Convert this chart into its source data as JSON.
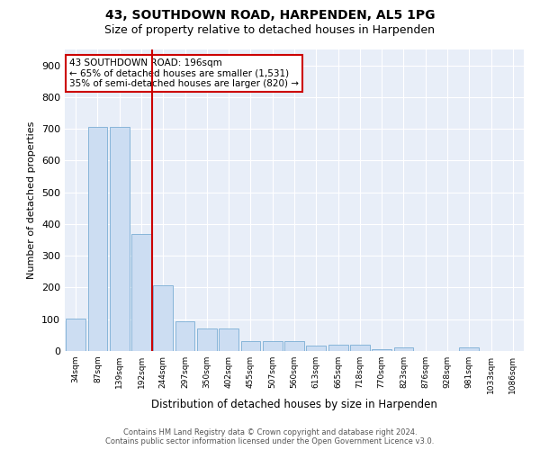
{
  "title": "43, SOUTHDOWN ROAD, HARPENDEN, AL5 1PG",
  "subtitle": "Size of property relative to detached houses in Harpenden",
  "xlabel": "Distribution of detached houses by size in Harpenden",
  "ylabel": "Number of detached properties",
  "bar_labels": [
    "34sqm",
    "87sqm",
    "139sqm",
    "192sqm",
    "244sqm",
    "297sqm",
    "350sqm",
    "402sqm",
    "455sqm",
    "507sqm",
    "560sqm",
    "613sqm",
    "665sqm",
    "718sqm",
    "770sqm",
    "823sqm",
    "876sqm",
    "928sqm",
    "981sqm",
    "1033sqm",
    "1086sqm"
  ],
  "bar_values": [
    102,
    705,
    705,
    370,
    207,
    95,
    70,
    70,
    30,
    32,
    32,
    16,
    20,
    20,
    5,
    10,
    0,
    0,
    10,
    0,
    0
  ],
  "bar_color": "#ccddf2",
  "bar_edgecolor": "#7aadd4",
  "vline_color": "#cc0000",
  "annotation_text": "43 SOUTHDOWN ROAD: 196sqm\n← 65% of detached houses are smaller (1,531)\n35% of semi-detached houses are larger (820) →",
  "annotation_box_color": "#ffffff",
  "annotation_box_edgecolor": "#cc0000",
  "ylim": [
    0,
    950
  ],
  "yticks": [
    0,
    100,
    200,
    300,
    400,
    500,
    600,
    700,
    800,
    900
  ],
  "footer_text": "Contains HM Land Registry data © Crown copyright and database right 2024.\nContains public sector information licensed under the Open Government Licence v3.0.",
  "bg_color": "#e8eef8",
  "title_fontsize": 10,
  "subtitle_fontsize": 9
}
